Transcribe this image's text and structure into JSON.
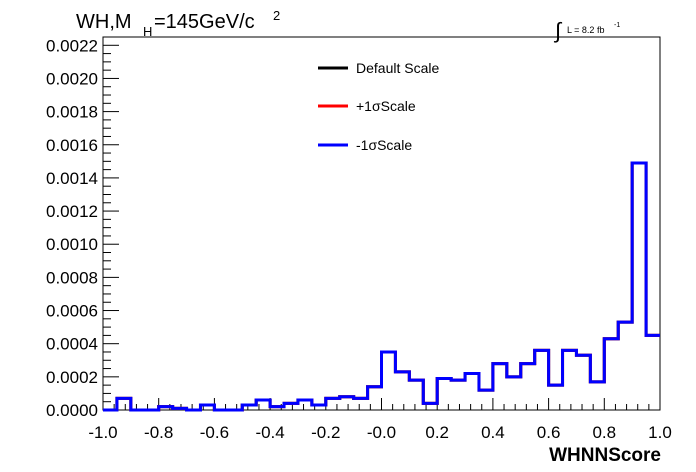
{
  "chart_data": {
    "type": "line",
    "title_main": "WH,M",
    "title_sub": "H",
    "title_rest": "=145GeV/c",
    "title_sup": "2",
    "lumi_text": "L = 8.2 fb",
    "lumi_sup": "-1",
    "xlabel": "WHNNScore",
    "ylabel": "",
    "xlim": [
      -1.0,
      1.0
    ],
    "ylim": [
      0.0,
      0.00225
    ],
    "x_ticks": [
      "-1.0",
      "-0.8",
      "-0.6",
      "-0.4",
      "-0.2",
      "-0.0",
      "0.2",
      "0.4",
      "0.6",
      "0.8",
      "1.0"
    ],
    "y_ticks": [
      "0.0000",
      "0.0002",
      "0.0004",
      "0.0006",
      "0.0008",
      "0.0010",
      "0.0012",
      "0.0014",
      "0.0016",
      "0.0018",
      "0.0020",
      "0.0022"
    ],
    "bin_edges_range": [
      -1.0,
      1.0
    ],
    "bin_count": 40,
    "series": [
      {
        "name": "Default Scale",
        "color": "#000000",
        "values": [
          0.0,
          7e-05,
          0.0,
          0.0,
          2e-05,
          1e-05,
          0.0,
          3e-05,
          0.0,
          0.0,
          3e-05,
          6e-05,
          2e-05,
          4e-05,
          6e-05,
          3e-05,
          7e-05,
          8e-05,
          7e-05,
          0.00014,
          0.00035,
          0.00023,
          0.00018,
          4e-05,
          0.00019,
          0.00018,
          0.00022,
          0.00012,
          0.00028,
          0.0002,
          0.00028,
          0.00036,
          0.00015,
          0.00036,
          0.00033,
          0.00017,
          0.00043,
          0.00053,
          0.00149,
          0.00045
        ]
      },
      {
        "name": "+1σScale",
        "color": "#ff0000",
        "values": [
          0.0,
          7e-05,
          0.0,
          0.0,
          2e-05,
          1e-05,
          0.0,
          3e-05,
          0.0,
          0.0,
          3e-05,
          6e-05,
          2e-05,
          4e-05,
          6e-05,
          3e-05,
          7e-05,
          8e-05,
          7e-05,
          0.00014,
          0.00035,
          0.00023,
          0.00018,
          4e-05,
          0.00019,
          0.00018,
          0.00022,
          0.00012,
          0.00028,
          0.0002,
          0.00028,
          0.00036,
          0.00015,
          0.00036,
          0.00033,
          0.00017,
          0.00043,
          0.00053,
          0.00149,
          0.00045
        ]
      },
      {
        "name": "-1σScale",
        "color": "#0000ff",
        "values": [
          0.0,
          7e-05,
          0.0,
          0.0,
          2e-05,
          1e-05,
          0.0,
          3e-05,
          0.0,
          0.0,
          3e-05,
          6e-05,
          2e-05,
          4e-05,
          6e-05,
          3e-05,
          7e-05,
          8e-05,
          7e-05,
          0.00014,
          0.00035,
          0.00023,
          0.00018,
          4e-05,
          0.00019,
          0.00018,
          0.00022,
          0.00012,
          0.00028,
          0.0002,
          0.00028,
          0.00036,
          0.00015,
          0.00036,
          0.00033,
          0.00017,
          0.00043,
          0.00053,
          0.00149,
          0.00045
        ]
      }
    ],
    "legend": [
      "Default Scale",
      "+1σScale",
      "-1σScale"
    ],
    "legend_position": "top-center",
    "grid": false
  }
}
